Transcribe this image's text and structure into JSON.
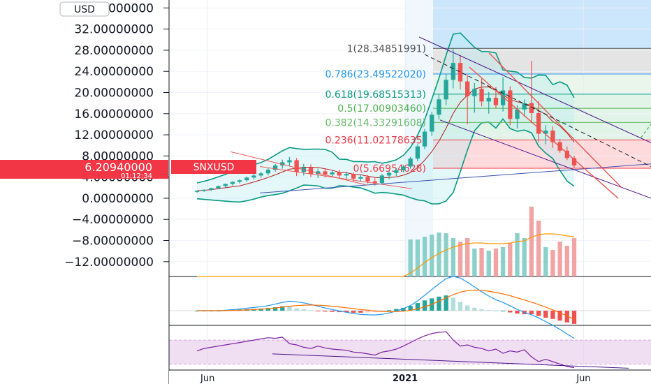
{
  "currency": "USD",
  "symbol": "SNXUSD",
  "last_price": "6.20940000",
  "countdown": "01:12:34",
  "colors": {
    "up": "#26a69a",
    "down": "#ef5350",
    "fib_zone": "#2196f3",
    "rsi": "#9c27b0"
  },
  "chart_data": {
    "type": "candlestick",
    "y_ticks": [
      "36.00000000",
      "32.00000000",
      "28.00000000",
      "24.00000000",
      "20.00000000",
      "16.00000000",
      "12.00000000",
      "8.00000000",
      "4.00000000",
      "0.00000000",
      "−4.00000000",
      "−8.00000000",
      "−12.00000000"
    ],
    "x_ticks": [
      {
        "label": "Jun",
        "bold": false,
        "t": 0.08
      },
      {
        "label": "2021",
        "bold": true,
        "t": 0.49
      },
      {
        "label": "Jun",
        "bold": false,
        "t": 0.86
      }
    ],
    "ylim": [
      -14.8,
      37.5
    ],
    "fib_levels": [
      {
        "label": "1(28.34851991)",
        "value": 28.3485,
        "color": "#555555"
      },
      {
        "label": "0.786(23.49522020)",
        "value": 23.4952,
        "color": "#2196f3"
      },
      {
        "label": "0.618(19.68515313)",
        "value": 19.6852,
        "color": "#089981"
      },
      {
        "label": "0.5(17.00903460)",
        "value": 17.009,
        "color": "#4caf50"
      },
      {
        "label": "0.382(14.33291608)",
        "value": 14.3329,
        "color": "#66bb6a"
      },
      {
        "label": "0.236(11.02178635)",
        "value": 11.0218,
        "color": "#f23645"
      },
      {
        "label": "0(5.66954628)",
        "value": 5.6695,
        "color": "#f23645"
      }
    ],
    "candles": [
      {
        "o": 1.2,
        "h": 1.5,
        "l": 1.0,
        "c": 1.4
      },
      {
        "o": 1.4,
        "h": 1.7,
        "l": 1.2,
        "c": 1.6
      },
      {
        "o": 1.6,
        "h": 2.0,
        "l": 1.4,
        "c": 1.9
      },
      {
        "o": 1.9,
        "h": 2.4,
        "l": 1.7,
        "c": 2.3
      },
      {
        "o": 2.3,
        "h": 2.8,
        "l": 2.0,
        "c": 2.7
      },
      {
        "o": 2.7,
        "h": 3.2,
        "l": 2.4,
        "c": 3.1
      },
      {
        "o": 3.1,
        "h": 3.6,
        "l": 2.8,
        "c": 3.4
      },
      {
        "o": 3.4,
        "h": 4.1,
        "l": 3.1,
        "c": 3.9
      },
      {
        "o": 3.9,
        "h": 4.6,
        "l": 3.5,
        "c": 4.3
      },
      {
        "o": 4.3,
        "h": 5.0,
        "l": 3.9,
        "c": 4.7
      },
      {
        "o": 4.7,
        "h": 5.7,
        "l": 4.3,
        "c": 5.4
      },
      {
        "o": 5.4,
        "h": 6.5,
        "l": 5.0,
        "c": 6.2
      },
      {
        "o": 6.2,
        "h": 7.3,
        "l": 5.6,
        "c": 6.8
      },
      {
        "o": 6.8,
        "h": 7.8,
        "l": 6.1,
        "c": 7.2
      },
      {
        "o": 7.2,
        "h": 7.6,
        "l": 4.2,
        "c": 5.0
      },
      {
        "o": 5.0,
        "h": 6.5,
        "l": 4.3,
        "c": 5.8
      },
      {
        "o": 5.8,
        "h": 6.4,
        "l": 4.0,
        "c": 4.6
      },
      {
        "o": 4.6,
        "h": 5.6,
        "l": 3.8,
        "c": 5.1
      },
      {
        "o": 5.1,
        "h": 5.5,
        "l": 3.9,
        "c": 4.5
      },
      {
        "o": 4.5,
        "h": 5.3,
        "l": 4.0,
        "c": 4.9
      },
      {
        "o": 4.9,
        "h": 5.4,
        "l": 3.8,
        "c": 4.3
      },
      {
        "o": 4.3,
        "h": 5.0,
        "l": 3.6,
        "c": 4.6
      },
      {
        "o": 4.6,
        "h": 4.9,
        "l": 3.2,
        "c": 3.7
      },
      {
        "o": 3.7,
        "h": 4.5,
        "l": 3.1,
        "c": 4.0
      },
      {
        "o": 4.0,
        "h": 4.4,
        "l": 2.8,
        "c": 3.2
      },
      {
        "o": 3.2,
        "h": 3.8,
        "l": 2.4,
        "c": 2.9
      },
      {
        "o": 2.9,
        "h": 4.6,
        "l": 2.6,
        "c": 4.3
      },
      {
        "o": 4.3,
        "h": 5.1,
        "l": 3.6,
        "c": 4.8
      },
      {
        "o": 4.8,
        "h": 5.7,
        "l": 4.2,
        "c": 5.3
      },
      {
        "o": 5.3,
        "h": 6.3,
        "l": 4.9,
        "c": 6.0
      },
      {
        "o": 6.0,
        "h": 7.8,
        "l": 5.6,
        "c": 7.5
      },
      {
        "o": 7.5,
        "h": 10.2,
        "l": 7.0,
        "c": 9.8
      },
      {
        "o": 9.8,
        "h": 13.1,
        "l": 9.3,
        "c": 12.6
      },
      {
        "o": 12.6,
        "h": 16.4,
        "l": 11.8,
        "c": 15.8
      },
      {
        "o": 15.8,
        "h": 19.6,
        "l": 14.9,
        "c": 18.7
      },
      {
        "o": 18.7,
        "h": 23.5,
        "l": 17.6,
        "c": 22.4
      },
      {
        "o": 22.4,
        "h": 28.3,
        "l": 20.8,
        "c": 25.6
      },
      {
        "o": 25.6,
        "h": 27.1,
        "l": 20.6,
        "c": 22.1
      },
      {
        "o": 22.1,
        "h": 23.4,
        "l": 14.0,
        "c": 19.3
      },
      {
        "o": 19.3,
        "h": 21.8,
        "l": 16.2,
        "c": 20.7
      },
      {
        "o": 20.7,
        "h": 22.6,
        "l": 17.4,
        "c": 18.3
      },
      {
        "o": 18.3,
        "h": 20.1,
        "l": 16.0,
        "c": 19.0
      },
      {
        "o": 19.0,
        "h": 21.0,
        "l": 17.0,
        "c": 17.6
      },
      {
        "o": 17.6,
        "h": 22.9,
        "l": 16.4,
        "c": 20.4
      },
      {
        "o": 20.4,
        "h": 21.2,
        "l": 13.8,
        "c": 15.0
      },
      {
        "o": 15.0,
        "h": 17.6,
        "l": 13.2,
        "c": 16.8
      },
      {
        "o": 16.8,
        "h": 18.7,
        "l": 15.4,
        "c": 18.0
      },
      {
        "o": 18.0,
        "h": 26.0,
        "l": 14.2,
        "c": 16.1
      },
      {
        "o": 16.1,
        "h": 18.4,
        "l": 10.6,
        "c": 12.2
      },
      {
        "o": 12.2,
        "h": 13.8,
        "l": 10.2,
        "c": 12.8
      },
      {
        "o": 12.8,
        "h": 13.6,
        "l": 9.5,
        "c": 10.6
      },
      {
        "o": 10.6,
        "h": 11.2,
        "l": 8.6,
        "c": 9.0
      },
      {
        "o": 9.0,
        "h": 9.8,
        "l": 7.2,
        "c": 7.6
      },
      {
        "o": 7.6,
        "h": 8.0,
        "l": 5.8,
        "c": 6.2
      }
    ],
    "volume": [
      0,
      0,
      0,
      0,
      0,
      0,
      0,
      0,
      0,
      0,
      0,
      0,
      0,
      0,
      0,
      0,
      0,
      0,
      0,
      0,
      0,
      0,
      0,
      0,
      0,
      0,
      0,
      0,
      0,
      0,
      0.53,
      0.53,
      0.57,
      0.6,
      0.63,
      0.62,
      0.55,
      0.5,
      0.55,
      0.4,
      0.41,
      0.37,
      0.4,
      0.42,
      0.48,
      0.62,
      0.55,
      1.0,
      0.8,
      0.42,
      0.38,
      0.5,
      0.44,
      0.55
    ],
    "volume_ma": [
      0,
      0,
      0,
      0,
      0,
      0,
      0,
      0,
      0,
      0,
      0,
      0,
      0,
      0,
      0,
      0,
      0,
      0,
      0,
      0,
      0,
      0,
      0,
      0,
      0,
      0,
      0,
      0,
      0,
      0,
      0.05,
      0.12,
      0.2,
      0.27,
      0.33,
      0.38,
      0.42,
      0.45,
      0.47,
      0.48,
      0.48,
      0.47,
      0.47,
      0.47,
      0.48,
      0.5,
      0.51,
      0.56,
      0.6,
      0.61,
      0.61,
      0.6,
      0.58,
      0.57
    ],
    "macd_hist": [
      0,
      0,
      0,
      0,
      0.02,
      0.03,
      0.04,
      0.05,
      0.06,
      0.07,
      0.09,
      0.12,
      0.15,
      0.14,
      0.08,
      0.05,
      0.02,
      -0.01,
      -0.03,
      -0.04,
      -0.05,
      -0.06,
      -0.07,
      -0.07,
      -0.06,
      -0.05,
      -0.02,
      0.02,
      0.06,
      0.1,
      0.16,
      0.26,
      0.35,
      0.42,
      0.48,
      0.52,
      0.45,
      0.3,
      0.18,
      0.1,
      0.05,
      0.02,
      0.0,
      0.0,
      -0.06,
      -0.1,
      -0.12,
      -0.12,
      -0.18,
      -0.24,
      -0.28,
      -0.34,
      -0.4,
      -0.45
    ],
    "rsi": [
      52,
      56,
      58,
      60,
      62,
      64,
      66,
      68,
      70,
      72,
      74,
      73,
      75,
      64,
      62,
      58,
      56,
      60,
      57,
      55,
      54,
      53,
      50,
      49,
      47,
      45,
      50,
      52,
      55,
      60,
      66,
      72,
      77,
      81,
      83,
      84,
      70,
      60,
      62,
      58,
      56,
      52,
      55,
      48,
      52,
      50,
      54,
      42,
      34,
      38,
      34,
      30,
      26,
      24
    ]
  }
}
